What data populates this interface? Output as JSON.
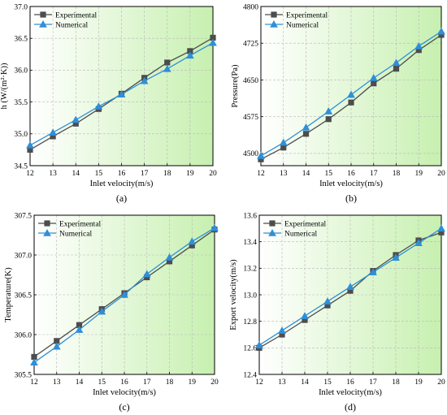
{
  "figure": {
    "legend_position": "top-left",
    "colors": {
      "experimental": "#4d4d4d",
      "numerical": "#2f8fd8",
      "background_gradient_start": "#ffffff",
      "background_gradient_end": "#c7f0b0",
      "grid": "#b8b8b8"
    }
  },
  "chart_data": [
    {
      "type": "line",
      "panel_label": "(a)",
      "xlabel": "Inlet velocity(m/s)",
      "ylabel": "h (W/(m²·K))",
      "xlim": [
        12,
        20
      ],
      "ylim": [
        34.5,
        37.0
      ],
      "xticks": [
        "12",
        "13",
        "14",
        "15",
        "16",
        "17",
        "18",
        "19",
        "20"
      ],
      "yticks": [
        "34.5",
        "35.0",
        "35.5",
        "36.0",
        "36.5",
        "37.0"
      ],
      "grid": true,
      "legend": "top-left",
      "x": [
        12,
        13,
        14,
        15,
        16,
        17,
        18,
        19,
        20
      ],
      "series": [
        {
          "name": "Experimental",
          "marker": "square",
          "values": [
            34.75,
            34.96,
            35.16,
            35.39,
            35.63,
            35.88,
            36.12,
            36.3,
            36.51
          ]
        },
        {
          "name": "Numerical",
          "marker": "triangle",
          "values": [
            34.82,
            35.02,
            35.22,
            35.43,
            35.62,
            35.83,
            36.02,
            36.23,
            36.43
          ]
        }
      ]
    },
    {
      "type": "line",
      "panel_label": "(b)",
      "xlabel": "Inlet velocity(m/s)",
      "ylabel": "Pressure(Pa)",
      "xlim": [
        12,
        20
      ],
      "ylim": [
        4475,
        4800
      ],
      "xticks": [
        "12",
        "13",
        "14",
        "15",
        "16",
        "17",
        "18",
        "19",
        "20"
      ],
      "yticks": [
        "4500",
        "4575",
        "4650",
        "4725",
        "4800"
      ],
      "grid": true,
      "legend": "top-left",
      "x": [
        12,
        13,
        14,
        15,
        16,
        17,
        18,
        19,
        20
      ],
      "series": [
        {
          "name": "Experimental",
          "marker": "square",
          "values": [
            4488,
            4512,
            4540,
            4570,
            4604,
            4643,
            4673,
            4711,
            4742
          ]
        },
        {
          "name": "Numerical",
          "marker": "triangle",
          "values": [
            4495,
            4522,
            4553,
            4586,
            4620,
            4654,
            4685,
            4719,
            4749
          ]
        }
      ]
    },
    {
      "type": "line",
      "panel_label": "(c)",
      "xlabel": "Inlet velocity(m/s)",
      "ylabel": "Temperature(K)",
      "xlim": [
        12,
        20
      ],
      "ylim": [
        305.5,
        307.5
      ],
      "xticks": [
        "12",
        "13",
        "14",
        "15",
        "16",
        "17",
        "18",
        "19",
        "20"
      ],
      "yticks": [
        "305.5",
        "306.0",
        "306.5",
        "307.0",
        "307.5"
      ],
      "grid": true,
      "legend": "top-left",
      "x": [
        12,
        13,
        14,
        15,
        16,
        17,
        18,
        19,
        20
      ],
      "series": [
        {
          "name": "Experimental",
          "marker": "square",
          "values": [
            305.72,
            305.92,
            306.12,
            306.32,
            306.52,
            306.72,
            306.92,
            307.12,
            307.32
          ]
        },
        {
          "name": "Numerical",
          "marker": "triangle",
          "values": [
            305.65,
            305.85,
            306.06,
            306.29,
            306.5,
            306.76,
            306.97,
            307.17,
            307.34
          ]
        }
      ]
    },
    {
      "type": "line",
      "panel_label": "(d)",
      "xlabel": "Inlet velocity(m/s)",
      "ylabel": "Export velocity(m/s)",
      "xlim": [
        12,
        20
      ],
      "ylim": [
        12.4,
        13.6
      ],
      "xticks": [
        "12",
        "13",
        "14",
        "15",
        "16",
        "17",
        "18",
        "19",
        "20"
      ],
      "yticks": [
        "12.4",
        "12.6",
        "12.8",
        "13.0",
        "13.2",
        "13.4",
        "13.6"
      ],
      "grid": true,
      "legend": "top-left",
      "x": [
        12,
        13,
        14,
        15,
        16,
        17,
        18,
        19,
        20
      ],
      "series": [
        {
          "name": "Experimental",
          "marker": "square",
          "values": [
            12.6,
            12.7,
            12.81,
            12.92,
            13.03,
            13.18,
            13.3,
            13.41,
            13.47
          ]
        },
        {
          "name": "Numerical",
          "marker": "triangle",
          "values": [
            12.62,
            12.73,
            12.84,
            12.95,
            13.06,
            13.17,
            13.28,
            13.39,
            13.5
          ]
        }
      ]
    }
  ]
}
